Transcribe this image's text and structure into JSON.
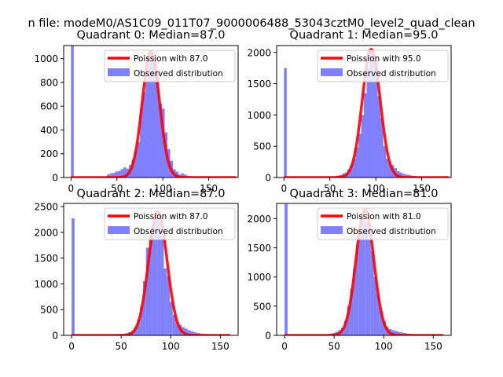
{
  "figure": {
    "suptitle": "n file: modeM0/AS1C09_011T07_9000006488_53043cztM0_level2_quad_clean",
    "colors": {
      "hist": "#8080ff",
      "fit": "#ff0000",
      "axis": "#000000",
      "background": "#ffffff"
    }
  },
  "chart_data": [
    {
      "type": "histogram",
      "title": "Quadrant 0: Median=87.0",
      "xlim": [
        -8,
        182
      ],
      "ylim": [
        0,
        1110
      ],
      "xticks": [
        0,
        50,
        100,
        150
      ],
      "yticks": [
        0,
        200,
        400,
        600,
        800,
        1000
      ],
      "median": 87.0,
      "fit_label": "Poission with 87.0",
      "hist_label": "Observed distribution",
      "bins": [
        {
          "x0": 0,
          "x1": 3,
          "count": 1108
        },
        {
          "x0": 39,
          "x1": 42,
          "count": 25
        },
        {
          "x0": 42,
          "x1": 45,
          "count": 35
        },
        {
          "x0": 45,
          "x1": 48,
          "count": 38
        },
        {
          "x0": 48,
          "x1": 51,
          "count": 50
        },
        {
          "x0": 51,
          "x1": 54,
          "count": 55
        },
        {
          "x0": 54,
          "x1": 57,
          "count": 70
        },
        {
          "x0": 57,
          "x1": 60,
          "count": 85
        },
        {
          "x0": 60,
          "x1": 63,
          "count": 75
        },
        {
          "x0": 63,
          "x1": 66,
          "count": 105
        },
        {
          "x0": 66,
          "x1": 69,
          "count": 150
        },
        {
          "x0": 69,
          "x1": 72,
          "count": 220
        },
        {
          "x0": 72,
          "x1": 75,
          "count": 300
        },
        {
          "x0": 75,
          "x1": 78,
          "count": 580
        },
        {
          "x0": 78,
          "x1": 81,
          "count": 720
        },
        {
          "x0": 81,
          "x1": 84,
          "count": 830
        },
        {
          "x0": 84,
          "x1": 87,
          "count": 1060
        },
        {
          "x0": 87,
          "x1": 90,
          "count": 980
        },
        {
          "x0": 90,
          "x1": 93,
          "count": 990
        },
        {
          "x0": 93,
          "x1": 96,
          "count": 920
        },
        {
          "x0": 96,
          "x1": 99,
          "count": 620
        },
        {
          "x0": 99,
          "x1": 102,
          "count": 580
        },
        {
          "x0": 102,
          "x1": 105,
          "count": 380
        },
        {
          "x0": 105,
          "x1": 108,
          "count": 240
        },
        {
          "x0": 108,
          "x1": 111,
          "count": 140
        },
        {
          "x0": 111,
          "x1": 114,
          "count": 70
        },
        {
          "x0": 114,
          "x1": 117,
          "count": 50
        },
        {
          "x0": 117,
          "x1": 120,
          "count": 25
        },
        {
          "x0": 120,
          "x1": 123,
          "count": 35
        },
        {
          "x0": 123,
          "x1": 126,
          "count": 25
        },
        {
          "x0": 126,
          "x1": 129,
          "count": 15
        },
        {
          "x0": 129,
          "x1": 132,
          "count": 12
        },
        {
          "x0": 132,
          "x1": 135,
          "count": 10
        },
        {
          "x0": 135,
          "x1": 138,
          "count": 8
        },
        {
          "x0": 138,
          "x1": 141,
          "count": 6
        },
        {
          "x0": 141,
          "x1": 144,
          "count": 5
        },
        {
          "x0": 144,
          "x1": 147,
          "count": 8
        },
        {
          "x0": 147,
          "x1": 150,
          "count": 6
        },
        {
          "x0": 150,
          "x1": 153,
          "count": 5
        },
        {
          "x0": 153,
          "x1": 156,
          "count": 4
        },
        {
          "x0": 156,
          "x1": 159,
          "count": 3
        }
      ],
      "fit": {
        "mu": 87.0,
        "peak": 1060,
        "x_range": [
          0,
          180
        ]
      }
    },
    {
      "type": "histogram",
      "title": "Quadrant 1: Median=95.0",
      "xlim": [
        -8,
        182
      ],
      "ylim": [
        0,
        2110
      ],
      "xticks": [
        0,
        50,
        100,
        150
      ],
      "yticks": [
        0,
        500,
        1000,
        1500,
        2000
      ],
      "median": 95.0,
      "fit_label": "Poission with 95.0",
      "hist_label": "Observed distribution",
      "bins": [
        {
          "x0": 0,
          "x1": 3,
          "count": 1750
        },
        {
          "x0": 54,
          "x1": 57,
          "count": 20
        },
        {
          "x0": 57,
          "x1": 60,
          "count": 30
        },
        {
          "x0": 60,
          "x1": 63,
          "count": 40
        },
        {
          "x0": 63,
          "x1": 66,
          "count": 60
        },
        {
          "x0": 66,
          "x1": 69,
          "count": 80
        },
        {
          "x0": 69,
          "x1": 72,
          "count": 130
        },
        {
          "x0": 72,
          "x1": 75,
          "count": 200
        },
        {
          "x0": 75,
          "x1": 78,
          "count": 300
        },
        {
          "x0": 78,
          "x1": 81,
          "count": 480
        },
        {
          "x0": 81,
          "x1": 84,
          "count": 700
        },
        {
          "x0": 84,
          "x1": 87,
          "count": 1000
        },
        {
          "x0": 87,
          "x1": 90,
          "count": 1350
        },
        {
          "x0": 90,
          "x1": 93,
          "count": 1750
        },
        {
          "x0": 93,
          "x1": 96,
          "count": 2020
        },
        {
          "x0": 96,
          "x1": 99,
          "count": 1950
        },
        {
          "x0": 99,
          "x1": 102,
          "count": 1850
        },
        {
          "x0": 102,
          "x1": 105,
          "count": 1300
        },
        {
          "x0": 105,
          "x1": 108,
          "count": 950
        },
        {
          "x0": 108,
          "x1": 111,
          "count": 500
        },
        {
          "x0": 111,
          "x1": 114,
          "count": 300
        },
        {
          "x0": 114,
          "x1": 117,
          "count": 230
        },
        {
          "x0": 117,
          "x1": 120,
          "count": 200
        },
        {
          "x0": 120,
          "x1": 123,
          "count": 150
        },
        {
          "x0": 123,
          "x1": 126,
          "count": 100
        },
        {
          "x0": 126,
          "x1": 129,
          "count": 80
        },
        {
          "x0": 129,
          "x1": 132,
          "count": 60
        },
        {
          "x0": 132,
          "x1": 135,
          "count": 45
        },
        {
          "x0": 135,
          "x1": 138,
          "count": 40
        },
        {
          "x0": 138,
          "x1": 141,
          "count": 30
        },
        {
          "x0": 141,
          "x1": 144,
          "count": 25
        },
        {
          "x0": 144,
          "x1": 147,
          "count": 15
        },
        {
          "x0": 147,
          "x1": 150,
          "count": 10
        }
      ],
      "fit": {
        "mu": 95.0,
        "peak": 2050,
        "x_range": [
          0,
          180
        ]
      }
    },
    {
      "type": "histogram",
      "title": "Quadrant 2: Median=87.0",
      "xlim": [
        -8,
        168
      ],
      "ylim": [
        0,
        2560
      ],
      "xticks": [
        0,
        50,
        100,
        150
      ],
      "yticks": [
        0,
        500,
        1000,
        1500,
        2000,
        2500
      ],
      "median": 87.0,
      "fit_label": "Poission with 87.0",
      "hist_label": "Observed distribution",
      "bins": [
        {
          "x0": 0,
          "x1": 3,
          "count": 2270
        },
        {
          "x0": 45,
          "x1": 48,
          "count": 20
        },
        {
          "x0": 48,
          "x1": 51,
          "count": 25
        },
        {
          "x0": 51,
          "x1": 54,
          "count": 30
        },
        {
          "x0": 54,
          "x1": 57,
          "count": 40
        },
        {
          "x0": 57,
          "x1": 60,
          "count": 60
        },
        {
          "x0": 60,
          "x1": 63,
          "count": 90
        },
        {
          "x0": 63,
          "x1": 66,
          "count": 160
        },
        {
          "x0": 66,
          "x1": 69,
          "count": 300
        },
        {
          "x0": 69,
          "x1": 72,
          "count": 550
        },
        {
          "x0": 72,
          "x1": 75,
          "count": 1050
        },
        {
          "x0": 75,
          "x1": 78,
          "count": 1700
        },
        {
          "x0": 78,
          "x1": 81,
          "count": 1950
        },
        {
          "x0": 81,
          "x1": 84,
          "count": 2100
        },
        {
          "x0": 84,
          "x1": 87,
          "count": 2300
        },
        {
          "x0": 87,
          "x1": 90,
          "count": 2220
        },
        {
          "x0": 90,
          "x1": 93,
          "count": 1950
        },
        {
          "x0": 93,
          "x1": 96,
          "count": 1300
        },
        {
          "x0": 96,
          "x1": 99,
          "count": 1150
        },
        {
          "x0": 99,
          "x1": 102,
          "count": 650
        },
        {
          "x0": 102,
          "x1": 105,
          "count": 400
        },
        {
          "x0": 105,
          "x1": 108,
          "count": 260
        },
        {
          "x0": 108,
          "x1": 111,
          "count": 200
        },
        {
          "x0": 111,
          "x1": 114,
          "count": 160
        },
        {
          "x0": 114,
          "x1": 117,
          "count": 130
        },
        {
          "x0": 117,
          "x1": 120,
          "count": 100
        },
        {
          "x0": 120,
          "x1": 123,
          "count": 80
        },
        {
          "x0": 123,
          "x1": 126,
          "count": 60
        },
        {
          "x0": 126,
          "x1": 129,
          "count": 45
        },
        {
          "x0": 129,
          "x1": 132,
          "count": 35
        },
        {
          "x0": 132,
          "x1": 135,
          "count": 25
        },
        {
          "x0": 135,
          "x1": 138,
          "count": 20
        }
      ],
      "fit": {
        "mu": 87.0,
        "peak": 2400,
        "x_range": [
          0,
          160
        ]
      }
    },
    {
      "type": "histogram",
      "title": "Quadrant 3: Median=81.0",
      "xlim": [
        -8,
        168
      ],
      "ylim": [
        0,
        2260
      ],
      "xticks": [
        0,
        50,
        100,
        150
      ],
      "yticks": [
        0,
        500,
        1000,
        1500,
        2000
      ],
      "median": 81.0,
      "fit_label": "Poission with 81.0",
      "hist_label": "Observed distribution",
      "bins": [
        {
          "x0": 0,
          "x1": 3,
          "count": 2250
        },
        {
          "x0": 42,
          "x1": 45,
          "count": 20
        },
        {
          "x0": 45,
          "x1": 48,
          "count": 30
        },
        {
          "x0": 48,
          "x1": 51,
          "count": 40
        },
        {
          "x0": 51,
          "x1": 54,
          "count": 60
        },
        {
          "x0": 54,
          "x1": 57,
          "count": 90
        },
        {
          "x0": 57,
          "x1": 60,
          "count": 130
        },
        {
          "x0": 60,
          "x1": 63,
          "count": 250
        },
        {
          "x0": 63,
          "x1": 66,
          "count": 500
        },
        {
          "x0": 66,
          "x1": 69,
          "count": 800
        },
        {
          "x0": 69,
          "x1": 72,
          "count": 1150
        },
        {
          "x0": 72,
          "x1": 75,
          "count": 1550
        },
        {
          "x0": 75,
          "x1": 78,
          "count": 1700
        },
        {
          "x0": 78,
          "x1": 81,
          "count": 2000
        },
        {
          "x0": 81,
          "x1": 84,
          "count": 1950
        },
        {
          "x0": 84,
          "x1": 87,
          "count": 1650
        },
        {
          "x0": 87,
          "x1": 90,
          "count": 1450
        },
        {
          "x0": 90,
          "x1": 93,
          "count": 1000
        },
        {
          "x0": 93,
          "x1": 96,
          "count": 700
        },
        {
          "x0": 96,
          "x1": 99,
          "count": 420
        },
        {
          "x0": 99,
          "x1": 102,
          "count": 250
        },
        {
          "x0": 102,
          "x1": 105,
          "count": 150
        },
        {
          "x0": 105,
          "x1": 108,
          "count": 110
        },
        {
          "x0": 108,
          "x1": 111,
          "count": 90
        },
        {
          "x0": 111,
          "x1": 114,
          "count": 75
        },
        {
          "x0": 114,
          "x1": 117,
          "count": 60
        },
        {
          "x0": 117,
          "x1": 120,
          "count": 50
        },
        {
          "x0": 120,
          "x1": 123,
          "count": 40
        },
        {
          "x0": 123,
          "x1": 126,
          "count": 30
        },
        {
          "x0": 126,
          "x1": 129,
          "count": 25
        },
        {
          "x0": 129,
          "x1": 132,
          "count": 20
        },
        {
          "x0": 132,
          "x1": 135,
          "count": 15
        }
      ],
      "fit": {
        "mu": 81.0,
        "peak": 2150,
        "x_range": [
          0,
          160
        ]
      }
    }
  ]
}
